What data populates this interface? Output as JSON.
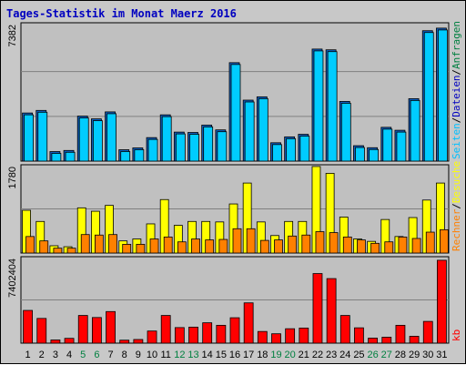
{
  "chart_data": {
    "type": "bar",
    "title": "Tages-Statistik im Monat Maerz 2016",
    "categories": [
      "1",
      "2",
      "3",
      "4",
      "5",
      "6",
      "7",
      "8",
      "9",
      "10",
      "11",
      "12",
      "13",
      "14",
      "15",
      "16",
      "17",
      "18",
      "19",
      "20",
      "21",
      "22",
      "23",
      "24",
      "25",
      "26",
      "27",
      "28",
      "29",
      "30",
      "31"
    ],
    "weekend_days": [
      "5",
      "6",
      "12",
      "13",
      "19",
      "20",
      "26",
      "27"
    ],
    "panels": [
      {
        "id": "top",
        "max_label": "7382",
        "ylim": [
          0,
          7382
        ],
        "legend": [
          {
            "text": "Anfragen",
            "color": "#008040"
          },
          {
            "text": "/",
            "color": "#000000"
          },
          {
            "text": "Dateien",
            "color": "#0000c0"
          },
          {
            "text": "/",
            "color": "#000000"
          },
          {
            "text": "Seiten",
            "color": "#00c0ff"
          }
        ],
        "series": [
          {
            "name": "Anfragen",
            "color": "#1060c0",
            "values": [
              2620,
              2760,
              520,
              580,
              2450,
              2300,
              2680,
              620,
              720,
              1280,
              2520,
              1580,
              1560,
              1960,
              1700,
              5360,
              3320,
              3500,
              1000,
              1320,
              1460,
              6100,
              6060,
              3250,
              840,
              730,
              1840,
              1680,
              3400,
              7100,
              7240
            ]
          },
          {
            "name": "Seiten",
            "color": "#00ccff",
            "values": [
              2620,
              2760,
              520,
              580,
              2450,
              2300,
              2680,
              620,
              720,
              1280,
              2520,
              1580,
              1560,
              1960,
              1700,
              5360,
              3320,
              3500,
              1000,
              1320,
              1460,
              6100,
              6060,
              3250,
              840,
              730,
              1840,
              1680,
              3400,
              7100,
              7240
            ]
          }
        ]
      },
      {
        "id": "middle",
        "max_label": "1780",
        "ylim": [
          0,
          1780
        ],
        "legend": [
          {
            "text": "Besuche",
            "color": "#ffff00"
          },
          {
            "text": "/",
            "color": "#000000"
          },
          {
            "text": "Rechner",
            "color": "#ff8000"
          }
        ],
        "series": [
          {
            "name": "Besuche",
            "color": "#ffff00",
            "values": [
              880,
              650,
              150,
              130,
              930,
              860,
              980,
              250,
              290,
              600,
              1100,
              570,
              650,
              650,
              640,
              1010,
              1440,
              640,
              360,
              650,
              650,
              1780,
              1640,
              740,
              290,
              240,
              690,
              340,
              730,
              1090,
              1440
            ]
          },
          {
            "name": "Rechner",
            "color": "#ff8000",
            "values": [
              340,
              250,
              100,
              100,
              380,
              370,
              380,
              180,
              180,
              290,
              330,
              230,
              290,
              270,
              280,
              500,
              500,
              260,
              270,
              350,
              370,
              440,
              420,
              330,
              270,
              200,
              230,
              330,
              300,
              430,
              480
            ]
          }
        ]
      },
      {
        "id": "bottom",
        "max_label": "7402404",
        "ylim": [
          0,
          7402404
        ],
        "legend": [
          {
            "text": "kb",
            "color": "#ff0000"
          }
        ],
        "series": [
          {
            "name": "kb",
            "color": "#ff0000",
            "values": [
              2860000,
              2160000,
              280000,
              420000,
              2420000,
              2240000,
              2760000,
              260000,
              320000,
              1060000,
              2420000,
              1360000,
              1400000,
              1780000,
              1560000,
              2220000,
              3520000,
              1020000,
              820000,
              1260000,
              1320000,
              6080000,
              5640000,
              2420000,
              1340000,
              440000,
              520000,
              1560000,
              600000,
              1900000,
              7240000
            ]
          }
        ]
      }
    ]
  }
}
